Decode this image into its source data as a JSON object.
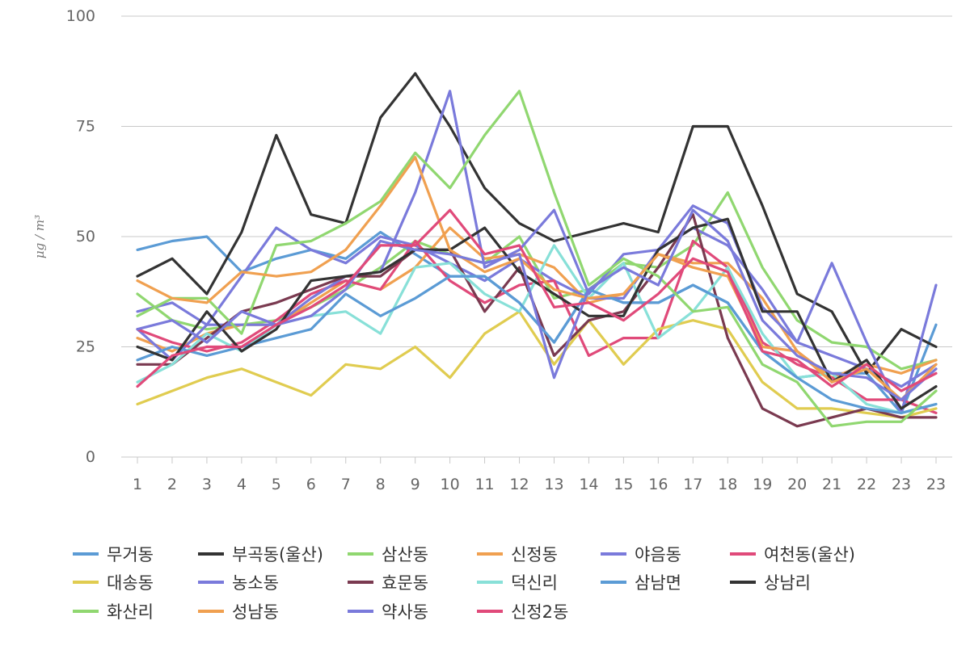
{
  "chart_data": {
    "type": "line",
    "title": "",
    "xlabel": "",
    "ylabel": "μg / m³",
    "ylim": [
      0,
      100
    ],
    "y_ticks": [
      0,
      25,
      50,
      75,
      100
    ],
    "x": [
      "1",
      "2",
      "3",
      "4",
      "5",
      "6",
      "7",
      "8",
      "9",
      "10",
      "11",
      "12",
      "13",
      "14",
      "15",
      "16",
      "17",
      "18",
      "19",
      "20",
      "21",
      "22",
      "23",
      "23"
    ],
    "grid": "horizontal",
    "legend_position": "bottom",
    "series": [
      {
        "name": "무거동",
        "color": "#5B9BD5",
        "values": [
          47,
          49,
          50,
          42,
          45,
          47,
          45,
          51,
          46,
          41,
          41,
          35,
          26,
          38,
          35,
          35,
          39,
          35,
          24,
          18,
          19,
          19,
          10,
          30
        ]
      },
      {
        "name": "부곡동(울산)",
        "color": "#333333",
        "values": [
          41,
          45,
          37,
          51,
          73,
          55,
          53,
          77,
          87,
          75,
          61,
          53,
          49,
          51,
          53,
          51,
          75,
          75,
          57,
          37,
          33,
          19,
          29,
          25
        ]
      },
      {
        "name": "삼산동",
        "color": "#90D770",
        "values": [
          37,
          31,
          29,
          30,
          31,
          34,
          38,
          43,
          49,
          46,
          44,
          50,
          36,
          38,
          44,
          43,
          48,
          60,
          43,
          31,
          26,
          25,
          20,
          22
        ]
      },
      {
        "name": "신정동",
        "color": "#F0A050",
        "values": [
          27,
          24,
          28,
          30,
          30,
          35,
          40,
          38,
          43,
          52,
          45,
          46,
          43,
          35,
          37,
          46,
          44,
          44,
          36,
          24,
          18,
          21,
          19,
          22
        ]
      },
      {
        "name": "야음동",
        "color": "#7A7ADB",
        "values": [
          29,
          22,
          30,
          41,
          52,
          47,
          44,
          50,
          48,
          44,
          40,
          45,
          40,
          36,
          36,
          47,
          52,
          48,
          38,
          26,
          23,
          20,
          16,
          21
        ]
      },
      {
        "name": "여천동(울산)",
        "color": "#E04A7A",
        "values": [
          29,
          26,
          24,
          26,
          31,
          37,
          40,
          38,
          49,
          40,
          35,
          39,
          40,
          23,
          27,
          27,
          49,
          43,
          26,
          21,
          18,
          13,
          13,
          10
        ]
      },
      {
        "name": "대송동",
        "color": "#E0CC50",
        "values": [
          12,
          15,
          18,
          20,
          17,
          14,
          21,
          20,
          25,
          18,
          28,
          33,
          21,
          31,
          21,
          29,
          31,
          29,
          17,
          11,
          11,
          10,
          9,
          11
        ]
      },
      {
        "name": "농소동",
        "color": "#7A7ADB",
        "values": [
          33,
          35,
          30,
          30,
          30,
          36,
          41,
          42,
          60,
          83,
          43,
          47,
          56,
          37,
          46,
          47,
          57,
          53,
          34,
          26,
          44,
          26,
          10,
          39
        ]
      },
      {
        "name": "효문동",
        "color": "#7A3A50",
        "values": [
          21,
          21,
          27,
          33,
          35,
          38,
          41,
          41,
          47,
          47,
          33,
          43,
          23,
          31,
          33,
          43,
          55,
          27,
          11,
          7,
          9,
          11,
          9,
          9
        ]
      },
      {
        "name": "덕신리",
        "color": "#88E0D8",
        "values": [
          17,
          21,
          28,
          24,
          30,
          32,
          33,
          28,
          43,
          44,
          37,
          33,
          48,
          36,
          44,
          27,
          33,
          43,
          28,
          18,
          19,
          12,
          10,
          12
        ]
      },
      {
        "name": "삼남면",
        "color": "#5B9BD5",
        "values": [
          22,
          25,
          23,
          25,
          27,
          29,
          37,
          32,
          36,
          41,
          41,
          35,
          26,
          38,
          35,
          35,
          39,
          35,
          24,
          18,
          13,
          11,
          10,
          12
        ]
      },
      {
        "name": "상남리",
        "color": "#333333",
        "values": [
          25,
          22,
          33,
          24,
          29,
          40,
          41,
          42,
          47,
          47,
          52,
          42,
          37,
          32,
          32,
          47,
          52,
          54,
          33,
          33,
          17,
          22,
          11,
          16
        ]
      },
      {
        "name": "화산리",
        "color": "#90D770",
        "values": [
          32,
          36,
          36,
          28,
          48,
          49,
          53,
          58,
          69,
          61,
          73,
          83,
          60,
          39,
          45,
          41,
          33,
          34,
          21,
          17,
          7,
          8,
          8,
          15
        ]
      },
      {
        "name": "성남동",
        "color": "#F0A050",
        "values": [
          40,
          36,
          35,
          42,
          41,
          42,
          47,
          57,
          68,
          47,
          42,
          45,
          38,
          36,
          37,
          46,
          43,
          41,
          25,
          24,
          17,
          20,
          13,
          21
        ]
      },
      {
        "name": "약사동",
        "color": "#7A7ADB",
        "values": [
          29,
          31,
          26,
          33,
          30,
          32,
          38,
          49,
          47,
          46,
          44,
          46,
          18,
          38,
          43,
          39,
          56,
          49,
          31,
          23,
          19,
          18,
          13,
          20
        ]
      },
      {
        "name": "신정2동",
        "color": "#E04A7A",
        "values": [
          16,
          23,
          25,
          25,
          30,
          34,
          39,
          48,
          48,
          56,
          46,
          48,
          34,
          35,
          31,
          37,
          45,
          42,
          24,
          22,
          16,
          21,
          15,
          19
        ]
      }
    ]
  }
}
